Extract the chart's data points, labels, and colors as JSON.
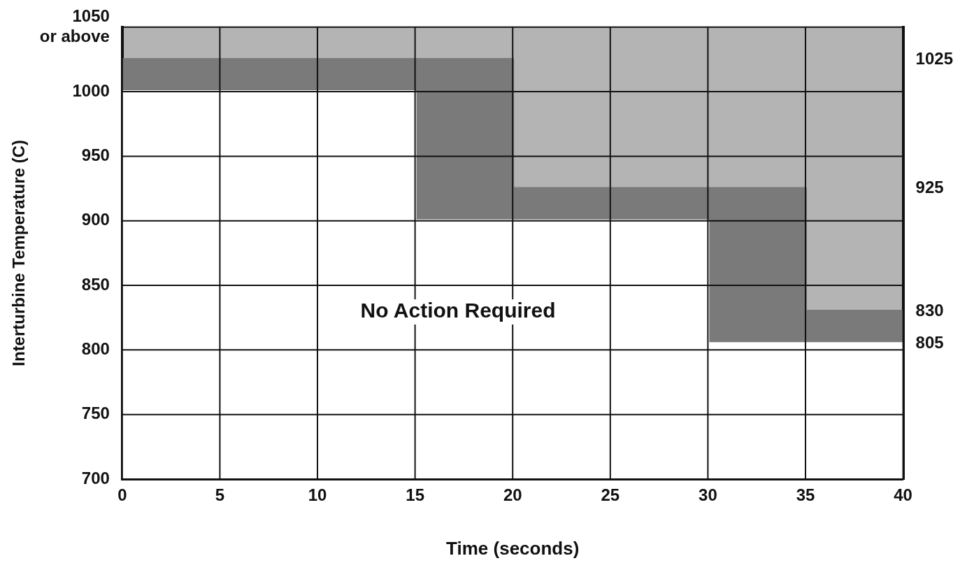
{
  "chart_data": {
    "type": "area",
    "xlabel": "Time (seconds)",
    "ylabel": "Interturbine Temperature (C)",
    "series": [
      {
        "color": "#7a7a7a",
        "x": [
          0,
          20,
          20,
          35,
          35,
          40
        ],
        "values": [
          1025,
          1025,
          925,
          925,
          830,
          830
        ]
      },
      {
        "color": "#ffffff",
        "x": [
          0,
          15,
          15,
          30,
          30,
          40
        ],
        "values": [
          1000,
          1000,
          900,
          900,
          805,
          805
        ]
      }
    ],
    "xlim": [
      0,
      40
    ],
    "xticks": [
      0,
      5,
      10,
      15,
      20,
      25,
      30,
      35,
      40
    ],
    "ylim": [
      700,
      1050
    ],
    "yticks": [
      700,
      750,
      800,
      850,
      900,
      950,
      1000,
      {
        "value": 1050,
        "label": "1050\nor above"
      }
    ],
    "y2lim": [
      700,
      1050
    ],
    "y2ticks": [
      805,
      830,
      925,
      1025
    ],
    "grid": true,
    "legend": false,
    "marker": "none",
    "line_style": "solid",
    "annotations": [
      "No Action Required"
    ]
  }
}
